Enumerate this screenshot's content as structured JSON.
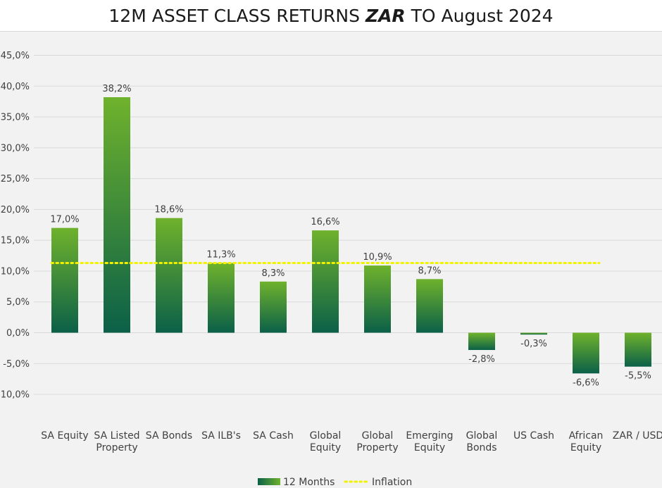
{
  "chart_data": {
    "type": "bar",
    "title_prefix": "12M ASSET CLASS RETURNS ",
    "title_emphasis": "ZAR",
    "title_suffix": " TO August 2024",
    "categories": [
      [
        "SA Equity"
      ],
      [
        "SA Listed",
        "Property"
      ],
      [
        "SA Bonds"
      ],
      [
        "SA ILB's"
      ],
      [
        "SA Cash"
      ],
      [
        "Global",
        "Equity"
      ],
      [
        "Global",
        "Property"
      ],
      [
        "Emerging",
        "Equity"
      ],
      [
        "Global",
        "Bonds"
      ],
      [
        "US Cash"
      ],
      [
        "African",
        "Equity"
      ],
      [
        "ZAR / USD"
      ]
    ],
    "series": [
      {
        "name": "12 Months",
        "values": [
          17.0,
          38.2,
          18.6,
          11.3,
          8.3,
          16.6,
          10.9,
          8.7,
          -2.8,
          -0.3,
          -6.6,
          -5.5
        ],
        "labels": [
          "17,0%",
          "38,2%",
          "18,6%",
          "11,3%",
          "8,3%",
          "16,6%",
          "10,9%",
          "8,7%",
          "-2,8%",
          "-0,3%",
          "-6,6%",
          "-5,5%"
        ]
      },
      {
        "name": "Inflation",
        "value": 11.3,
        "style": "dotted",
        "spans_categories": 11
      }
    ],
    "yticks": [
      45,
      40,
      35,
      30,
      25,
      20,
      15,
      10,
      5,
      0,
      -5,
      -10
    ],
    "ytick_labels": [
      "45,0%",
      "40,0%",
      "35,0%",
      "30,0%",
      "25,0%",
      "20,0%",
      "15,0%",
      "10,0%",
      "5,0%",
      "0,0%",
      "-5,0%",
      "-10,0%"
    ],
    "ylim": [
      -10,
      45
    ],
    "grid": true,
    "legend": "bottom",
    "colors": {
      "bar_top": "#6fb22c",
      "bar_bottom": "#0b6048",
      "inflation": "#f2f200",
      "grid": "#d9d9d9"
    }
  }
}
